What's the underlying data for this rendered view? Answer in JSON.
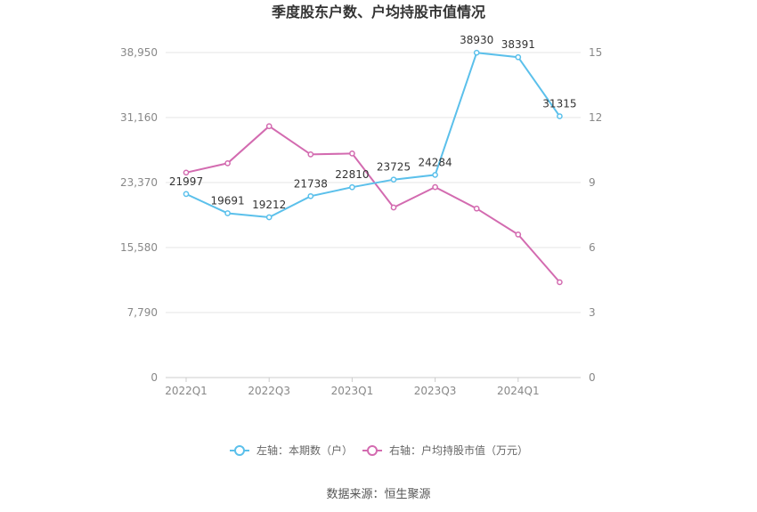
{
  "chart_data": {
    "type": "line",
    "title": "季度股东户数、户均持股市值情况",
    "categories": [
      "2022Q1",
      "2022Q2",
      "2022Q3",
      "2022Q4",
      "2023Q1",
      "2023Q2",
      "2023Q3",
      "2023Q4",
      "2024Q1",
      "2024Q2"
    ],
    "x_tick_labels": [
      "2022Q1",
      "2022Q3",
      "2023Q1",
      "2023Q3",
      "2024Q1"
    ],
    "left_axis": {
      "ticks": [
        "0",
        "7,790",
        "15,580",
        "23,370",
        "31,160",
        "38,950"
      ],
      "min": 0,
      "max": 38950
    },
    "right_axis": {
      "ticks": [
        "0",
        "3",
        "6",
        "9",
        "12",
        "15"
      ],
      "min": 0,
      "max": 15
    },
    "series": [
      {
        "name": "左轴：本期数（户）",
        "axis": "left",
        "color": "#5bc0eb",
        "values": [
          21997,
          19691,
          19212,
          21738,
          22810,
          23725,
          24284,
          38930,
          38391,
          31315
        ],
        "labels": [
          "21997",
          "19691",
          "19212",
          "21738",
          "22810",
          "23725",
          "24284",
          "38930",
          "38391",
          "31315"
        ]
      },
      {
        "name": "右轴：户均持股市值（万元）",
        "axis": "right",
        "color": "#d36bb0",
        "values": [
          9.46,
          9.89,
          11.6,
          10.3,
          10.34,
          7.85,
          8.79,
          7.8,
          6.6,
          4.4
        ]
      }
    ],
    "grid": true,
    "legend_position": "bottom"
  },
  "source": "数据来源：恒生聚源"
}
